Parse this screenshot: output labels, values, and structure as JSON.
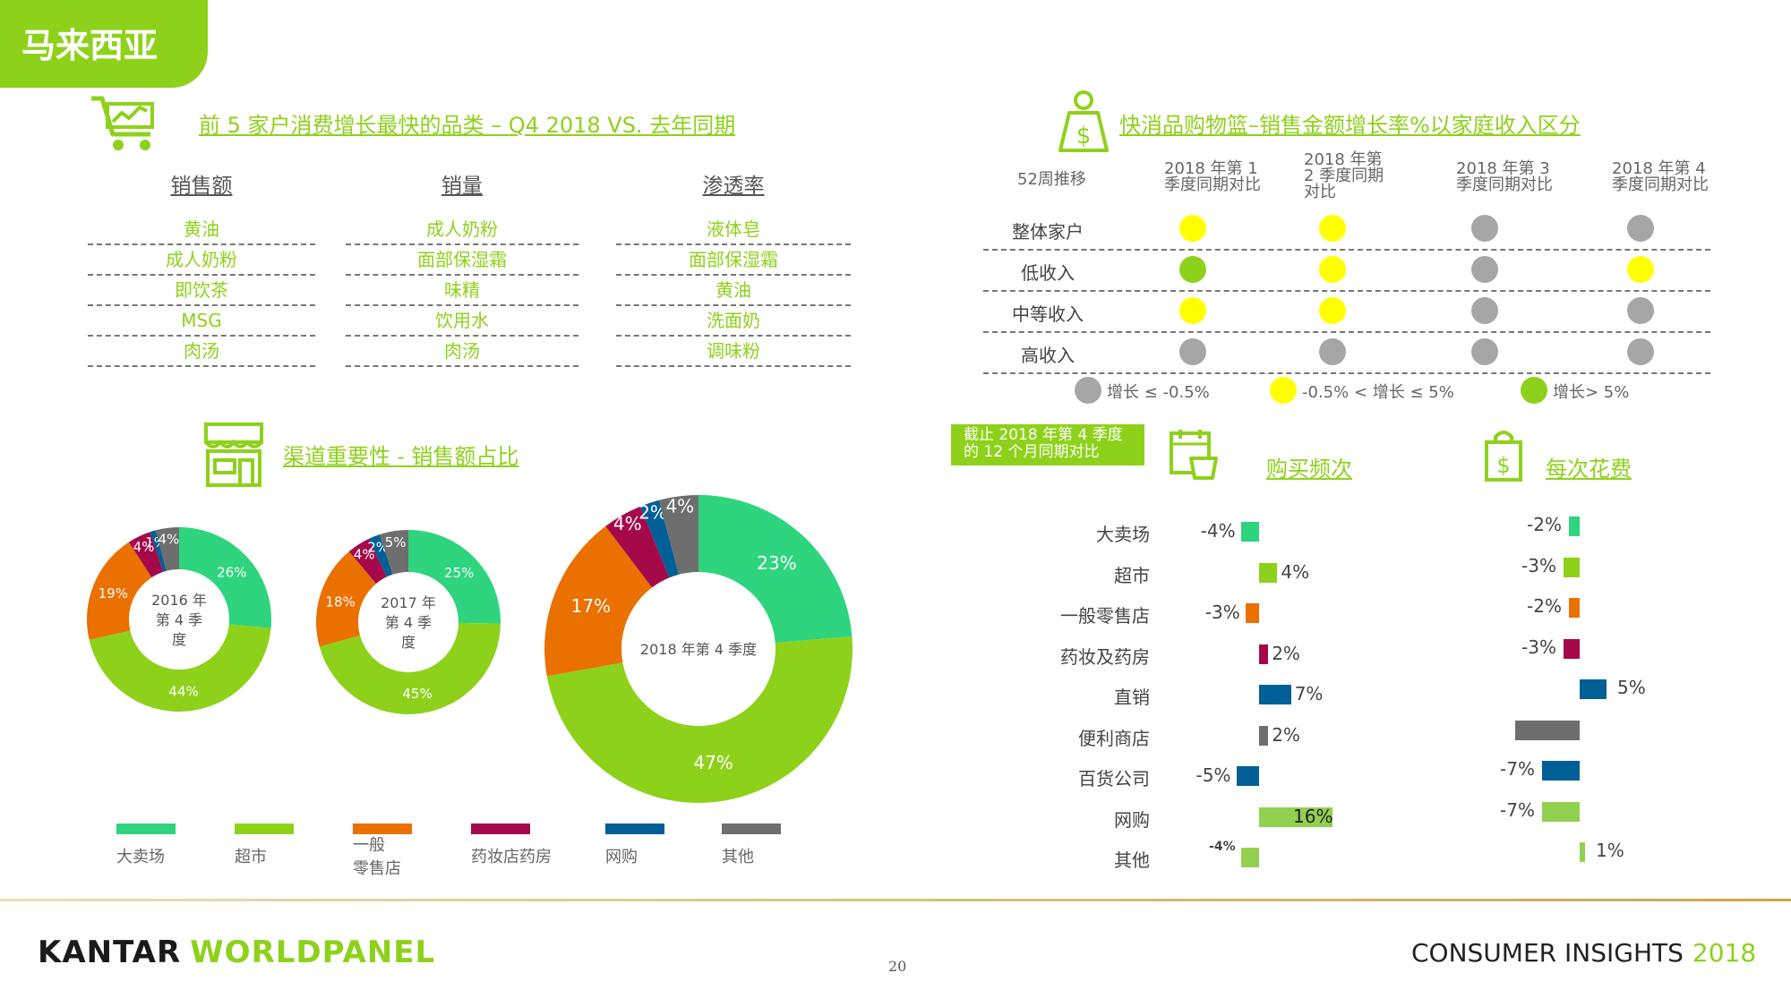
{
  "country": "马来西亚",
  "top5": {
    "title": "前 5 家户消费增长最快的品类 – Q4 2018 VS. 去年同期",
    "columns": [
      {
        "header": "销售额",
        "items": [
          "黄油",
          "成人奶粉",
          "即饮茶",
          "MSG",
          "肉汤"
        ]
      },
      {
        "header": "销量",
        "items": [
          "成人奶粉",
          "面部保湿霜",
          "味精",
          "饮用水",
          "肉汤"
        ]
      },
      {
        "header": "渗透率",
        "items": [
          "液体皂",
          "面部保湿霜",
          "黄油",
          "洗面奶",
          "调味粉"
        ]
      }
    ]
  },
  "basket": {
    "title": "快消品购物篮–销售金额增长率%以家庭收入区分",
    "row_header": "52周推移",
    "quarters": [
      "2018 年第 1 季度同期对比",
      "2018 年第 2 季度同期对比",
      "2018 年第 3 季度同期对比",
      "2018 年第 4 季度同期对比"
    ],
    "quarters_display": [
      [
        "2018 年第 1",
        "季度同期对比"
      ],
      [
        "2018 年第",
        "2 季度同期",
        "对比"
      ],
      [
        "2018 年第 3",
        "季度同期对比"
      ],
      [
        "2018 年第 4",
        "季度同期对比"
      ]
    ],
    "rows": [
      {
        "label": "整体家户",
        "status": [
          "yellow",
          "yellow",
          "gray",
          "gray"
        ]
      },
      {
        "label": "低收入",
        "status": [
          "green",
          "yellow",
          "gray",
          "yellow"
        ]
      },
      {
        "label": "中等收入",
        "status": [
          "yellow",
          "yellow",
          "gray",
          "gray"
        ]
      },
      {
        "label": "高收入",
        "status": [
          "gray",
          "gray",
          "gray",
          "gray"
        ]
      }
    ],
    "legend": [
      {
        "status": "gray",
        "label": "增长 ≤ -0.5%"
      },
      {
        "status": "yellow",
        "label": "-0.5% < 增长 ≤ 5%"
      },
      {
        "status": "green",
        "label": "增长> 5%"
      }
    ],
    "status_colors": {
      "gray": "#a6a6a6",
      "yellow": "#ffff00",
      "green": "#8ed11b"
    }
  },
  "channel": {
    "title": "渠道重要性 - 销售额占比",
    "legend": [
      "大卖场",
      "超市",
      "一般零售店",
      "药妆店药房",
      "网购",
      "其他"
    ],
    "colors": [
      "#2ed47e",
      "#8ed11b",
      "#ea7000",
      "#a5094a",
      "#005f96",
      "#6e6e6e"
    ]
  },
  "period_badge": "截止 2018 年第 4 季度的 12 个月同期对比",
  "period_badge_lines": [
    "截止 2018 年第 4 季度",
    "的 12 个月同期对比"
  ],
  "frequency_title": "购买频次",
  "spend_title": "每次花费",
  "bar_colors": [
    "#2ed47e",
    "#8ed11b",
    "#ea7000",
    "#a5094a",
    "#005f96",
    "#6e6e6e",
    "#005f96",
    "#92d050",
    "#92d050"
  ],
  "chart_data": [
    {
      "type": "pie",
      "title": "2016 年第 4 季度",
      "categories": [
        "大卖场",
        "超市",
        "一般零售店",
        "药妆店药房",
        "网购",
        "其他"
      ],
      "values": [
        26,
        44,
        19,
        4,
        1,
        4
      ],
      "value_labels": [
        "26%",
        "44%",
        "19%",
        "4%",
        "1%",
        "4%"
      ]
    },
    {
      "type": "pie",
      "title": "2017 年第 4 季度",
      "categories": [
        "大卖场",
        "超市",
        "一般零售店",
        "药妆店药房",
        "网购",
        "其他"
      ],
      "values": [
        25,
        45,
        18,
        4,
        2,
        5
      ],
      "value_labels": [
        "25%",
        "45%",
        "18%",
        "4%",
        "2%",
        "5%"
      ]
    },
    {
      "type": "pie",
      "title": "2018 年第 4 季度",
      "categories": [
        "大卖场",
        "超市",
        "一般零售店",
        "药妆店药房",
        "网购",
        "其他"
      ],
      "values": [
        23,
        47,
        17,
        4,
        2,
        4
      ],
      "value_labels": [
        "23%",
        "47%",
        "17%",
        "4%",
        "2%",
        "4%"
      ]
    },
    {
      "type": "bar",
      "title": "购买频次",
      "categories": [
        "大卖场",
        "超市",
        "一般零售店",
        "药妆及药房",
        "直销",
        "便利商店",
        "百货公司",
        "网购",
        "其他"
      ],
      "values": [
        -4,
        4,
        -3,
        2,
        7,
        2,
        -5,
        16,
        -4
      ],
      "value_labels": [
        "-4%",
        "4%",
        "-3%",
        "2%",
        "7%",
        "2%",
        "-5%",
        "16%",
        "-4%"
      ]
    },
    {
      "type": "bar",
      "title": "每次花费",
      "categories": [
        "大卖场",
        "超市",
        "一般零售店",
        "药妆及药房",
        "直销",
        "便利商店",
        "百货公司",
        "网购",
        "其他"
      ],
      "values": [
        -2,
        -3,
        -2,
        -3,
        5,
        -12,
        -7,
        -7,
        1
      ],
      "value_labels": [
        "-2%",
        "-3%",
        "-2%",
        "-3%",
        "5%",
        "",
        "-7%",
        "-7%",
        "1%"
      ]
    }
  ],
  "footer": {
    "brand_left": "KANTAR",
    "brand_right": "WORLDPANEL",
    "page": "20",
    "insight": "CONSUMER INSIGHTS",
    "year": "2018"
  }
}
